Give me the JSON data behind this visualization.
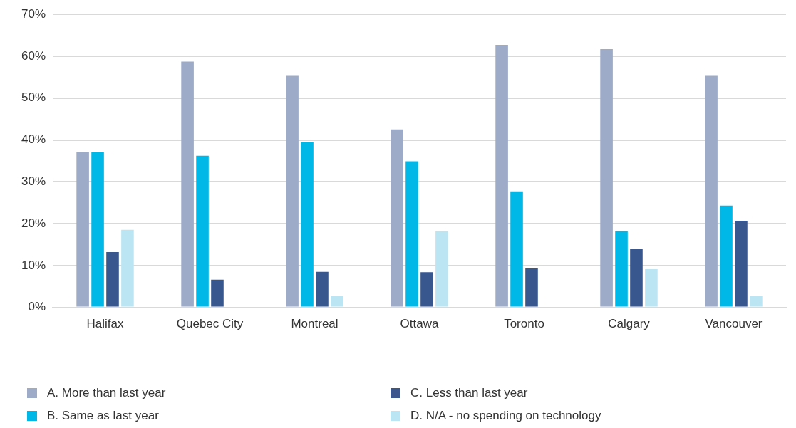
{
  "chart_data": {
    "type": "bar",
    "categories": [
      "Halifax",
      "Quebec City",
      "Montreal",
      "Ottawa",
      "Toronto",
      "Calgary",
      "Vancouver"
    ],
    "series": [
      {
        "name": "A. More than last year",
        "color": "#9dabc9",
        "values": [
          37.1,
          58.7,
          55.3,
          42.5,
          62.7,
          61.7,
          55.3
        ]
      },
      {
        "name": "B. Same as last year",
        "color": "#00b8e8",
        "values": [
          37.1,
          36.2,
          39.5,
          34.9,
          27.7,
          18.2,
          24.3
        ]
      },
      {
        "name": "C. Less than last year",
        "color": "#37578e",
        "values": [
          13.2,
          6.6,
          8.5,
          8.4,
          9.3,
          13.9,
          20.7
        ]
      },
      {
        "name": "D. N/A - no spending on technology",
        "color": "#bce5f4",
        "values": [
          18.5,
          0,
          2.8,
          18.2,
          0,
          9.1,
          2.8
        ]
      }
    ],
    "ylim": [
      0,
      70
    ],
    "yticks": [
      {
        "value": 0,
        "label": "0%"
      },
      {
        "value": 10,
        "label": "10%"
      },
      {
        "value": 20,
        "label": "20%"
      },
      {
        "value": 30,
        "label": "30%"
      },
      {
        "value": 40,
        "label": "40%"
      },
      {
        "value": 50,
        "label": "50%"
      },
      {
        "value": 60,
        "label": "60%"
      },
      {
        "value": 70,
        "label": "70%"
      }
    ],
    "grid": "y",
    "legend": "bottom"
  }
}
